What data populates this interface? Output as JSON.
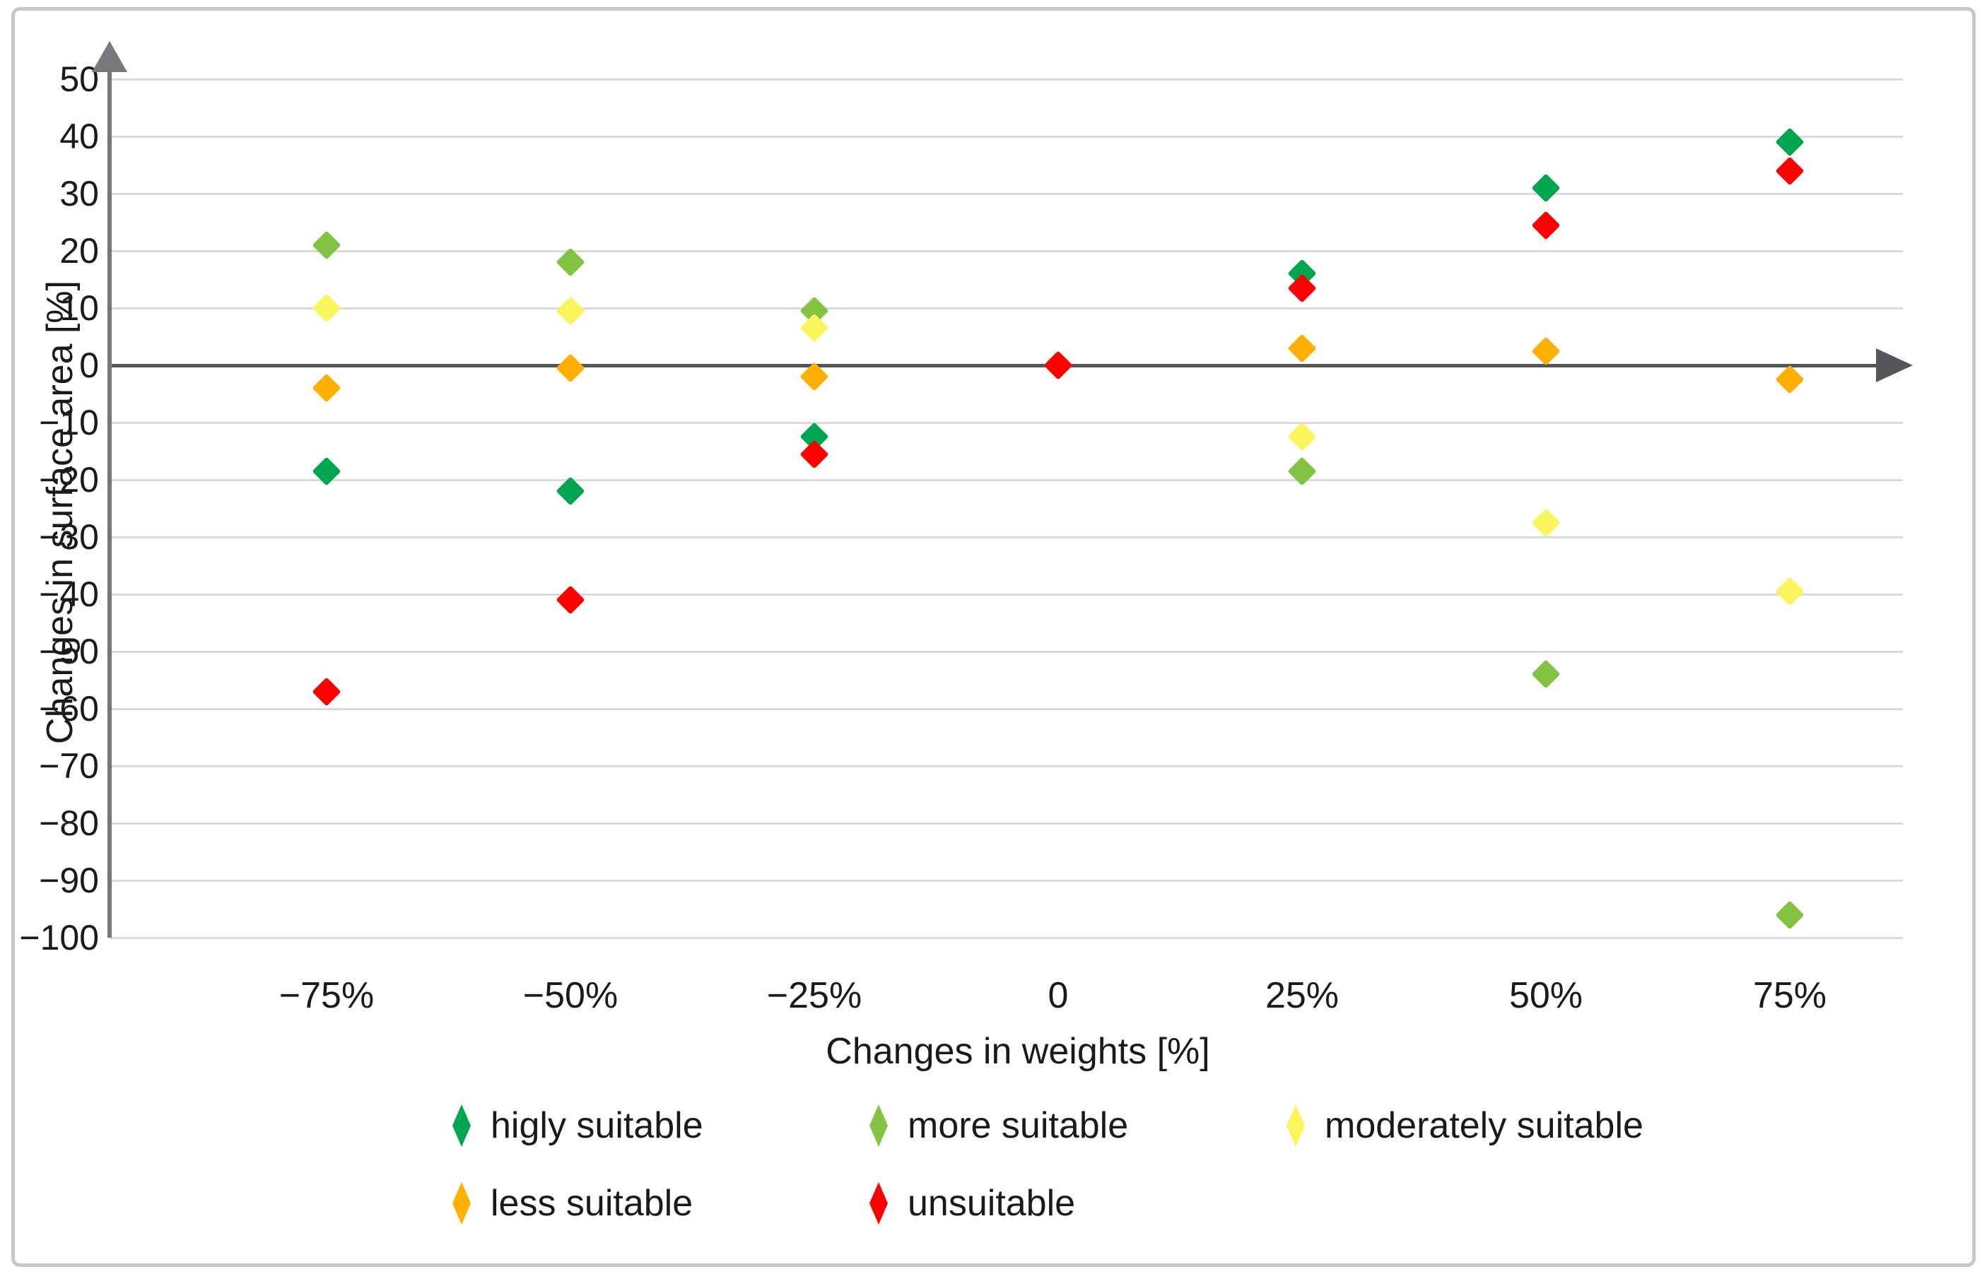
{
  "chart_data": {
    "type": "scatter",
    "marker": "diamond",
    "title": "",
    "xlabel": "Changes in weights [%]",
    "ylabel": "Changes in surface area [%]",
    "categories": [
      "−75%",
      "−50%",
      "−25%",
      "0",
      "25%",
      "50%",
      "75%"
    ],
    "x_values": [
      -75,
      -50,
      -25,
      0,
      25,
      50,
      75
    ],
    "ylim": [
      -100,
      50
    ],
    "y_tick_step": 10,
    "y_tick_labels": [
      "50",
      "40",
      "30",
      "20",
      "10",
      "0",
      "−10",
      "−20",
      "−30",
      "−40",
      "−50",
      "−60",
      "−70",
      "−80",
      "−90",
      "−100"
    ],
    "grid": true,
    "legend_position": "bottom",
    "series": [
      {
        "name": "higly suitable",
        "color": "#00a550",
        "values": [
          -18.5,
          -22,
          -12.5,
          0,
          16,
          31,
          39
        ]
      },
      {
        "name": "more suitable",
        "color": "#82c341",
        "values": [
          21,
          18,
          9.5,
          0,
          -18.5,
          -54,
          -96
        ]
      },
      {
        "name": "moderately suitable",
        "color": "#fbf55c",
        "values": [
          10,
          9.5,
          6.5,
          0,
          -12.5,
          -27.5,
          -39.5
        ]
      },
      {
        "name": "less suitable",
        "color": "#ffaf00",
        "values": [
          -4,
          -0.5,
          -2,
          0,
          3,
          2.5,
          -2.5
        ]
      },
      {
        "name": "unsuitable",
        "color": "#ff0000",
        "values": [
          -57,
          -41,
          -15.5,
          0,
          13.5,
          24.5,
          34
        ]
      }
    ]
  }
}
